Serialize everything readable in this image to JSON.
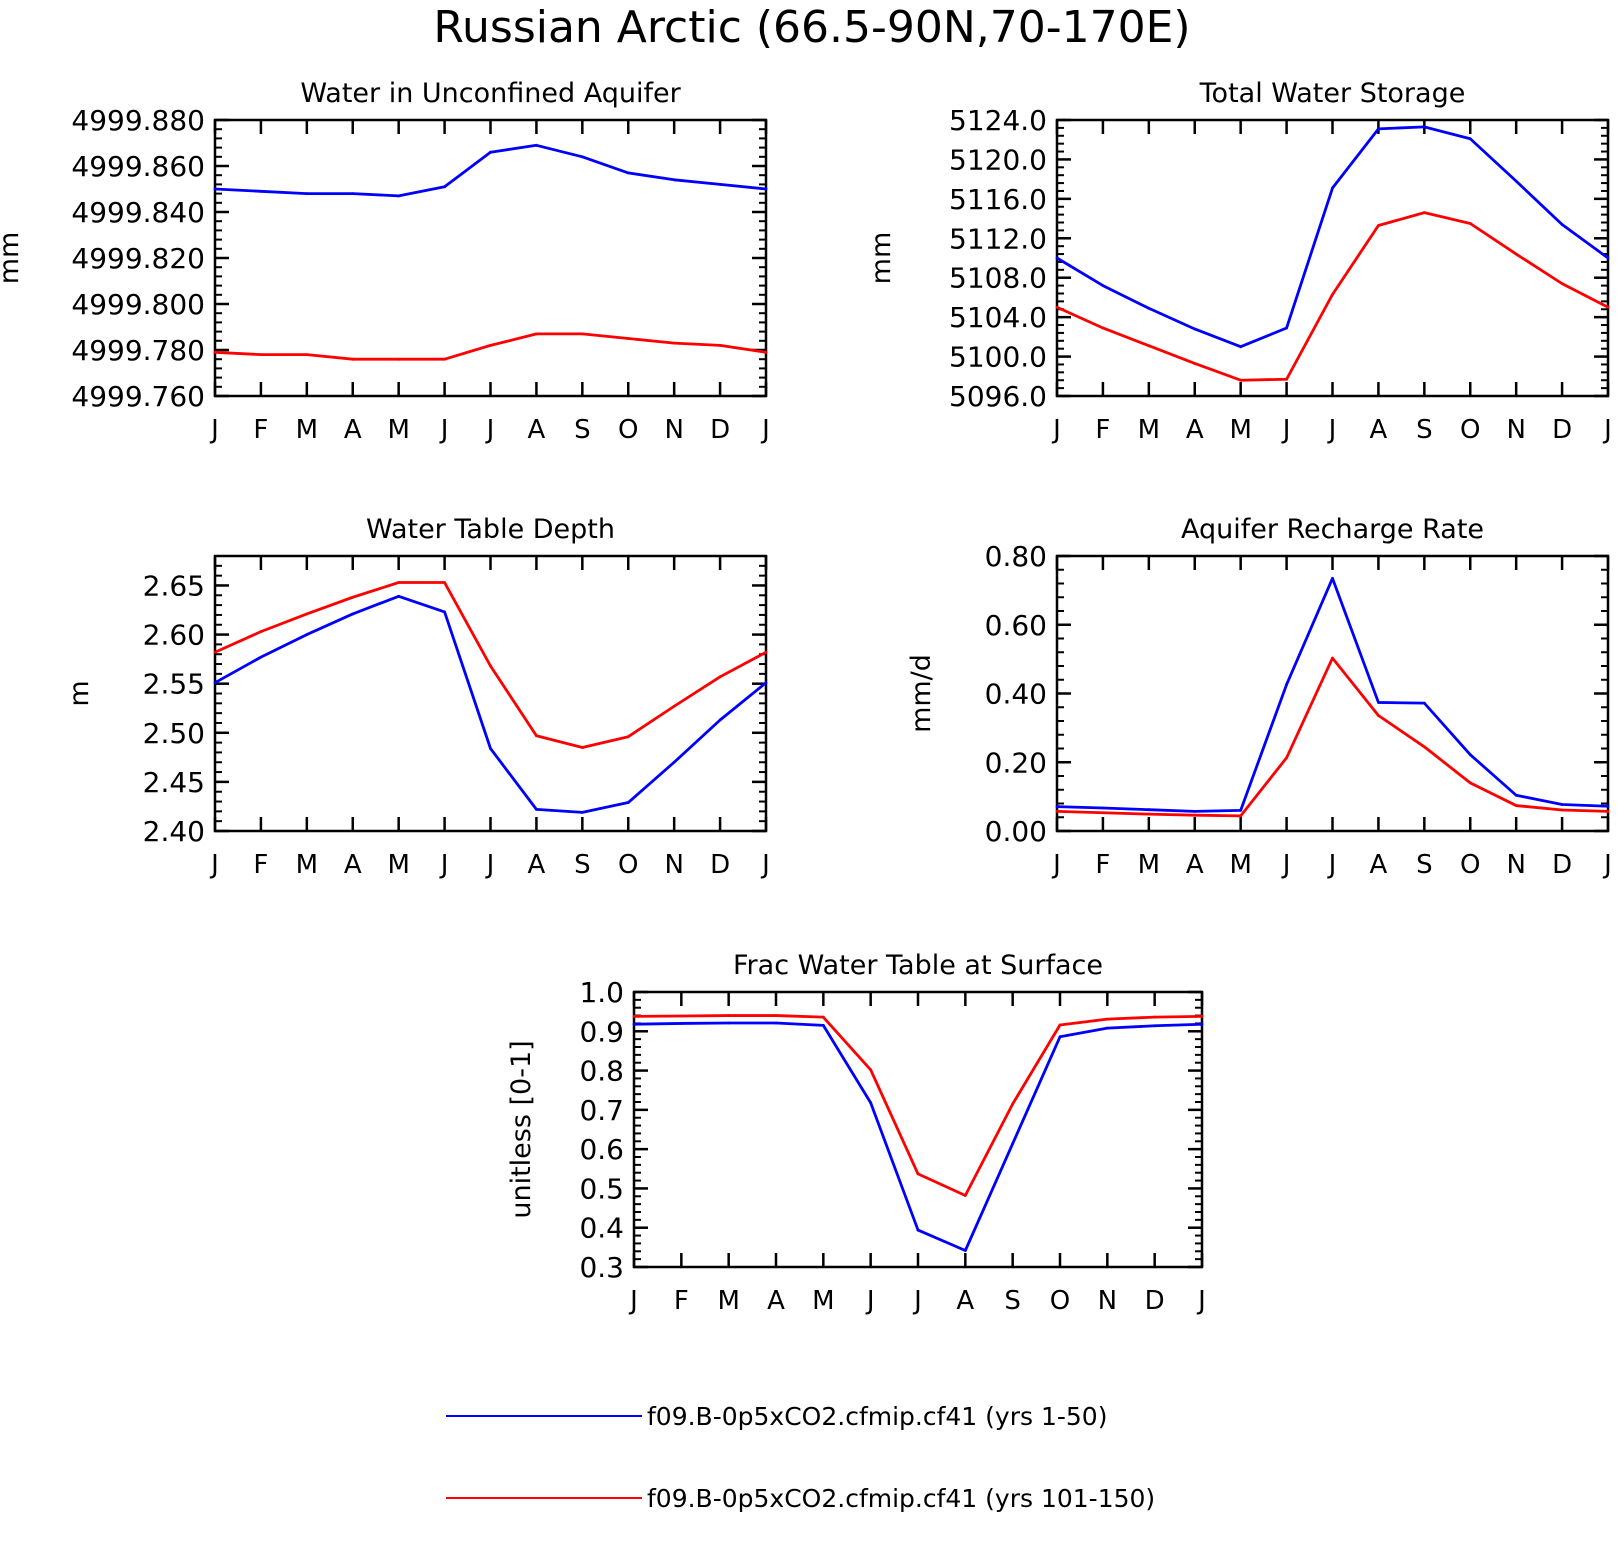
{
  "figure": {
    "title": "Russian Arctic (66.5-90N,70-170E)"
  },
  "legend": {
    "placement": "bottom-center",
    "entries": [
      {
        "label": "f09.B-0p5xCO2.cfmip.cf41 (yrs 1-50)",
        "color": "#0000ff"
      },
      {
        "label": "f09.B-0p5xCO2.cfmip.cf41 (yrs 101-150)",
        "color": "#ff0000"
      }
    ]
  },
  "chart_data": [
    {
      "type": "line",
      "title": "Water in Unconfined Aquifer",
      "ylabel": "mm",
      "xlabel": "",
      "categories": [
        "J",
        "F",
        "M",
        "A",
        "M",
        "J",
        "J",
        "A",
        "S",
        "O",
        "N",
        "D",
        "J"
      ],
      "ylim": [
        4999.76,
        4999.88
      ],
      "yticks": [
        4999.76,
        4999.78,
        4999.8,
        4999.82,
        4999.84,
        4999.86,
        4999.88
      ],
      "ytick_labels": [
        "4999.760",
        "4999.780",
        "4999.800",
        "4999.820",
        "4999.840",
        "4999.860",
        "4999.880"
      ],
      "series": [
        {
          "color": "#0000ff",
          "values": [
            4999.85,
            4999.849,
            4999.848,
            4999.848,
            4999.847,
            4999.851,
            4999.866,
            4999.869,
            4999.864,
            4999.857,
            4999.854,
            4999.852,
            4999.85
          ]
        },
        {
          "color": "#ff0000",
          "values": [
            4999.779,
            4999.778,
            4999.778,
            4999.776,
            4999.776,
            4999.776,
            4999.782,
            4999.787,
            4999.787,
            4999.785,
            4999.783,
            4999.782,
            4999.779
          ]
        }
      ]
    },
    {
      "type": "line",
      "title": "Total Water Storage",
      "ylabel": "mm",
      "xlabel": "",
      "categories": [
        "J",
        "F",
        "M",
        "A",
        "M",
        "J",
        "J",
        "A",
        "S",
        "O",
        "N",
        "D",
        "J"
      ],
      "ylim": [
        5096,
        5124
      ],
      "yticks": [
        5096,
        5100,
        5104,
        5108,
        5112,
        5116,
        5120,
        5124
      ],
      "ytick_labels": [
        "5096.0",
        "5100.0",
        "5104.0",
        "5108.0",
        "5112.0",
        "5116.0",
        "5120.0",
        "5124.0"
      ],
      "series": [
        {
          "color": "#0000ff",
          "values": [
            5110.0,
            5107.2,
            5104.9,
            5102.8,
            5101.0,
            5102.9,
            5117.1,
            5123.1,
            5123.3,
            5122.1,
            5117.8,
            5113.4,
            5110.0
          ]
        },
        {
          "color": "#ff0000",
          "values": [
            5105.0,
            5102.9,
            5101.1,
            5099.3,
            5097.6,
            5097.7,
            5106.3,
            5113.3,
            5114.6,
            5113.5,
            5110.4,
            5107.4,
            5105.0
          ]
        }
      ]
    },
    {
      "type": "line",
      "title": "Water Table Depth",
      "ylabel": "m",
      "xlabel": "",
      "categories": [
        "J",
        "F",
        "M",
        "A",
        "M",
        "J",
        "J",
        "A",
        "S",
        "O",
        "N",
        "D",
        "J"
      ],
      "ylim": [
        2.4,
        2.68
      ],
      "yticks": [
        2.4,
        2.45,
        2.5,
        2.55,
        2.6,
        2.65
      ],
      "ytick_labels": [
        "2.40",
        "2.45",
        "2.50",
        "2.55",
        "2.60",
        "2.65"
      ],
      "series": [
        {
          "color": "#0000ff",
          "values": [
            2.551,
            2.577,
            2.6,
            2.621,
            2.639,
            2.623,
            2.484,
            2.422,
            2.419,
            2.429,
            2.47,
            2.513,
            2.551
          ]
        },
        {
          "color": "#ff0000",
          "values": [
            2.582,
            2.603,
            2.621,
            2.638,
            2.653,
            2.653,
            2.568,
            2.497,
            2.485,
            2.496,
            2.527,
            2.557,
            2.582
          ]
        }
      ]
    },
    {
      "type": "line",
      "title": "Aquifer Recharge Rate",
      "ylabel": "mm/d",
      "xlabel": "",
      "categories": [
        "J",
        "F",
        "M",
        "A",
        "M",
        "J",
        "J",
        "A",
        "S",
        "O",
        "N",
        "D",
        "J"
      ],
      "ylim": [
        0.0,
        0.8
      ],
      "yticks": [
        0.0,
        0.2,
        0.4,
        0.6,
        0.8
      ],
      "ytick_labels": [
        "0.00",
        "0.20",
        "0.40",
        "0.60",
        "0.80"
      ],
      "series": [
        {
          "color": "#0000ff",
          "values": [
            0.071,
            0.067,
            0.062,
            0.057,
            0.06,
            0.426,
            0.735,
            0.374,
            0.372,
            0.222,
            0.104,
            0.077,
            0.072
          ]
        },
        {
          "color": "#ff0000",
          "values": [
            0.057,
            0.053,
            0.049,
            0.046,
            0.044,
            0.213,
            0.503,
            0.336,
            0.245,
            0.14,
            0.074,
            0.061,
            0.057
          ]
        }
      ]
    },
    {
      "type": "line",
      "title": "Frac Water Table at Surface",
      "ylabel": "unitless [0-1]",
      "xlabel": "",
      "categories": [
        "J",
        "F",
        "M",
        "A",
        "M",
        "J",
        "J",
        "A",
        "S",
        "O",
        "N",
        "D",
        "J"
      ],
      "ylim": [
        0.3,
        1.0
      ],
      "yticks": [
        0.3,
        0.4,
        0.5,
        0.6,
        0.7,
        0.8,
        0.9,
        1.0
      ],
      "ytick_labels": [
        "0.3",
        "0.4",
        "0.5",
        "0.6",
        "0.7",
        "0.8",
        "0.9",
        "1.0"
      ],
      "series": [
        {
          "color": "#0000ff",
          "values": [
            0.918,
            0.92,
            0.921,
            0.921,
            0.915,
            0.718,
            0.394,
            0.342,
            0.614,
            0.886,
            0.908,
            0.914,
            0.918
          ]
        },
        {
          "color": "#ff0000",
          "values": [
            0.938,
            0.939,
            0.94,
            0.94,
            0.936,
            0.802,
            0.537,
            0.482,
            0.715,
            0.916,
            0.931,
            0.936,
            0.938
          ]
        }
      ]
    }
  ]
}
